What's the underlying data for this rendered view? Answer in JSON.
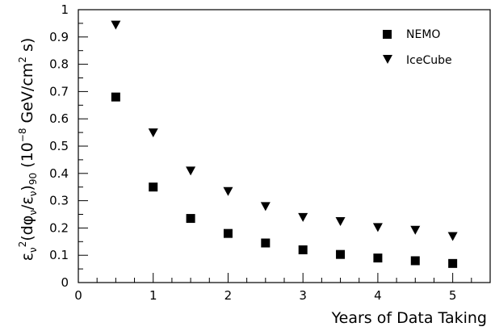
{
  "chart_data": {
    "type": "scatter",
    "title": "",
    "xlabel": "Years of Data Taking",
    "ylabel": "ε_ν²(dφ_ν/ε_ν)₉₀ (10⁻⁸ GeV/cm² s)",
    "ylabel_parts": {
      "eps": "ε",
      "nu": "ν",
      "sq": "2",
      "mid1": "(dφ",
      "mid2": "/ε",
      "close": ")",
      "sub90": "90",
      "unit1": " (10",
      "exp": "−8",
      "unit2": " GeV/cm",
      "unitsq": "2",
      "unit3": " s)"
    },
    "xlim": [
      0,
      5.5
    ],
    "ylim": [
      0,
      1
    ],
    "x_ticks": [
      0,
      1,
      2,
      3,
      4,
      5
    ],
    "x_tick_labels": [
      "0",
      "1",
      "2",
      "3",
      "4",
      "5"
    ],
    "y_ticks": [
      0,
      0.1,
      0.2,
      0.3,
      0.4,
      0.5,
      0.6,
      0.7,
      0.8,
      0.9,
      1
    ],
    "y_tick_labels": [
      "0",
      "0.1",
      "0.2",
      "0.3",
      "0.4",
      "0.5",
      "0.6",
      "0.7",
      "0.8",
      "0.9",
      "1"
    ],
    "grid": false,
    "legend_position": "top-right",
    "x": [
      0.5,
      1,
      1.5,
      2,
      2.5,
      3,
      3.5,
      4,
      4.5,
      5
    ],
    "series": [
      {
        "name": "NEMO",
        "marker": "square",
        "color": "#000000",
        "values": [
          0.68,
          0.35,
          0.235,
          0.18,
          0.145,
          0.12,
          0.103,
          0.09,
          0.08,
          0.07
        ]
      },
      {
        "name": "IceCube",
        "marker": "triangle-down",
        "color": "#000000",
        "values": [
          0.945,
          0.55,
          0.41,
          0.335,
          0.28,
          0.24,
          0.225,
          0.203,
          0.193,
          0.17
        ]
      }
    ]
  }
}
